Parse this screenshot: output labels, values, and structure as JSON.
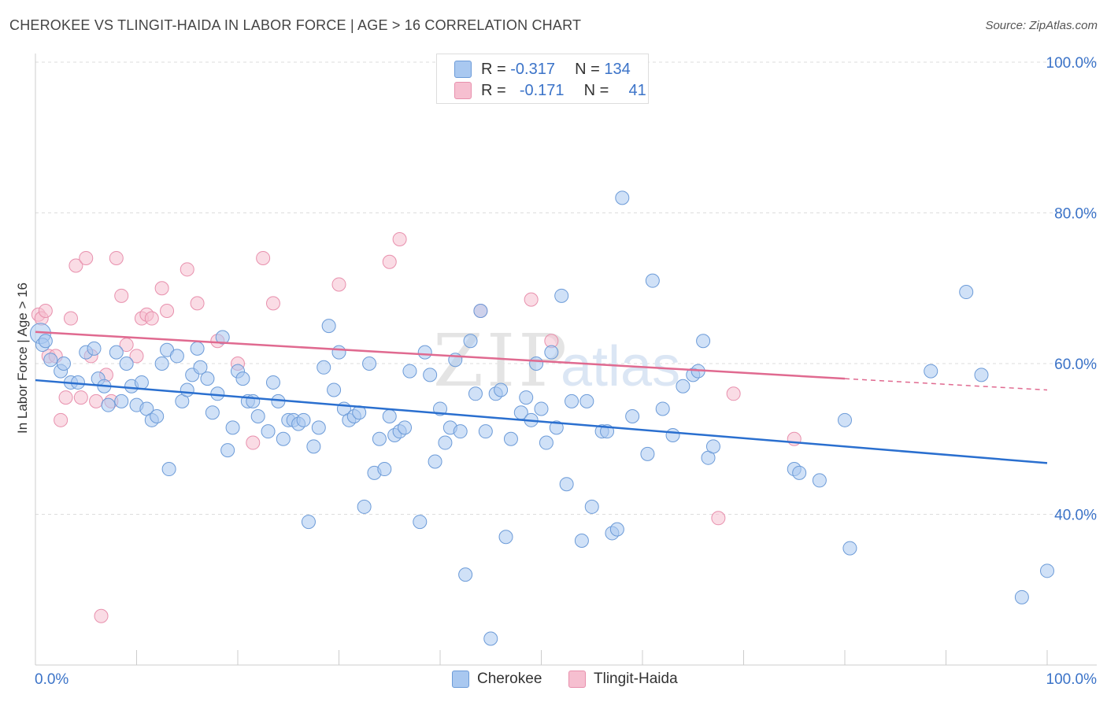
{
  "title": "CHEROKEE VS TLINGIT-HAIDA IN LABOR FORCE | AGE > 16 CORRELATION CHART",
  "source": "Source: ZipAtlas.com",
  "watermark": {
    "zip": "ZIP",
    "atlas": "atlas"
  },
  "legend": {
    "rows": [
      {
        "r_label": "R =",
        "r_value": "-0.317",
        "n_label": "N =",
        "n_value": "134"
      },
      {
        "r_label": "R =",
        "r_value": "-0.171",
        "n_label": "N =",
        "n_value": "41"
      }
    ]
  },
  "colors": {
    "cherokee_fill": "#a9c8f0",
    "cherokee_stroke": "#6c9bd8",
    "cherokee_line": "#2a6fcf",
    "tlingit_fill": "#f6bfd0",
    "tlingit_stroke": "#e890ad",
    "tlingit_line": "#e06a90",
    "axis_label": "#3b73c8",
    "grid": "#dddddd"
  },
  "chart_data": {
    "type": "scatter",
    "title": "CHEROKEE VS TLINGIT-HAIDA IN LABOR FORCE | AGE > 16 CORRELATION CHART",
    "xlabel": "",
    "ylabel": "In Labor Force | Age > 16",
    "xlim": [
      0,
      100
    ],
    "ylim": [
      20,
      100
    ],
    "x_tick_labels": [
      "0.0%",
      "100.0%"
    ],
    "y_ticks": [
      40,
      60,
      80,
      100
    ],
    "y_tick_labels": [
      "40.0%",
      "60.0%",
      "80.0%",
      "100.0%"
    ],
    "grid": true,
    "legend_position": "top-center",
    "series": [
      {
        "name": "Cherokee",
        "r": -0.317,
        "n": 134,
        "trend": {
          "x": [
            0,
            100
          ],
          "y": [
            57.8,
            46.8
          ]
        },
        "points": [
          [
            0.5,
            64
          ],
          [
            0.7,
            62.5
          ],
          [
            1.5,
            60.5
          ],
          [
            2.5,
            59
          ],
          [
            2.8,
            60
          ],
          [
            3.5,
            57.5
          ],
          [
            4.2,
            57.5
          ],
          [
            5.0,
            61.5
          ],
          [
            5.8,
            62
          ],
          [
            6.2,
            58
          ],
          [
            6.8,
            57
          ],
          [
            7.2,
            54.5
          ],
          [
            8.0,
            61.5
          ],
          [
            8.5,
            55
          ],
          [
            9.0,
            60
          ],
          [
            9.5,
            57
          ],
          [
            10.0,
            54.5
          ],
          [
            10.5,
            57.5
          ],
          [
            11.0,
            54
          ],
          [
            11.5,
            52.5
          ],
          [
            12.0,
            53
          ],
          [
            12.5,
            60
          ],
          [
            13.0,
            61.8
          ],
          [
            13.2,
            46
          ],
          [
            14.0,
            61
          ],
          [
            14.5,
            55
          ],
          [
            15.0,
            56.5
          ],
          [
            15.5,
            58.5
          ],
          [
            16.0,
            62
          ],
          [
            16.3,
            59.5
          ],
          [
            17.0,
            58
          ],
          [
            17.5,
            53.5
          ],
          [
            18.0,
            56
          ],
          [
            18.5,
            63.5
          ],
          [
            19.0,
            48.5
          ],
          [
            19.5,
            51.5
          ],
          [
            20.0,
            59
          ],
          [
            20.5,
            58
          ],
          [
            21.0,
            55
          ],
          [
            21.5,
            55
          ],
          [
            22.0,
            53
          ],
          [
            23.0,
            51
          ],
          [
            23.5,
            57.5
          ],
          [
            24.0,
            55
          ],
          [
            24.5,
            50
          ],
          [
            25.0,
            52.5
          ],
          [
            25.5,
            52.5
          ],
          [
            26.0,
            52
          ],
          [
            26.5,
            52.5
          ],
          [
            27.0,
            39
          ],
          [
            27.5,
            49
          ],
          [
            28.0,
            51.5
          ],
          [
            28.5,
            59.5
          ],
          [
            29.0,
            65
          ],
          [
            29.5,
            56.5
          ],
          [
            30.0,
            61.5
          ],
          [
            30.5,
            54
          ],
          [
            31.0,
            52.5
          ],
          [
            31.5,
            53
          ],
          [
            32.0,
            53.5
          ],
          [
            32.5,
            41
          ],
          [
            33.0,
            60
          ],
          [
            33.5,
            45.5
          ],
          [
            34.0,
            50
          ],
          [
            34.5,
            46
          ],
          [
            35.0,
            53
          ],
          [
            35.5,
            50.5
          ],
          [
            36.0,
            51
          ],
          [
            36.5,
            51.5
          ],
          [
            37.0,
            59
          ],
          [
            38.0,
            39
          ],
          [
            38.5,
            61.5
          ],
          [
            39.0,
            58.5
          ],
          [
            39.5,
            47
          ],
          [
            40.0,
            54
          ],
          [
            40.5,
            49.5
          ],
          [
            41.0,
            51.5
          ],
          [
            41.5,
            60.5
          ],
          [
            42.0,
            51
          ],
          [
            42.5,
            32
          ],
          [
            43.0,
            63
          ],
          [
            43.5,
            56
          ],
          [
            44.0,
            67
          ],
          [
            44.5,
            51
          ],
          [
            45.0,
            23.5
          ],
          [
            45.5,
            56
          ],
          [
            46.0,
            56.5
          ],
          [
            46.5,
            37
          ],
          [
            47.0,
            50
          ],
          [
            48.0,
            53.5
          ],
          [
            48.5,
            55.5
          ],
          [
            49.0,
            52.5
          ],
          [
            49.5,
            60
          ],
          [
            50.0,
            54
          ],
          [
            50.5,
            49.5
          ],
          [
            51.0,
            61.5
          ],
          [
            51.5,
            51.5
          ],
          [
            52.0,
            69
          ],
          [
            52.5,
            44
          ],
          [
            53.0,
            55
          ],
          [
            54.0,
            36.5
          ],
          [
            54.5,
            55
          ],
          [
            55.0,
            41
          ],
          [
            56.0,
            51
          ],
          [
            56.5,
            51
          ],
          [
            57.0,
            37.5
          ],
          [
            57.5,
            38
          ],
          [
            58.0,
            82
          ],
          [
            59.0,
            53
          ],
          [
            60.5,
            48
          ],
          [
            61.0,
            71
          ],
          [
            62.0,
            54
          ],
          [
            63.0,
            50.5
          ],
          [
            64.0,
            57
          ],
          [
            65.0,
            58.5
          ],
          [
            65.5,
            59
          ],
          [
            66.0,
            63
          ],
          [
            66.5,
            47.5
          ],
          [
            67.0,
            49
          ],
          [
            75.0,
            46
          ],
          [
            75.5,
            45.5
          ],
          [
            77.5,
            44.5
          ],
          [
            80.0,
            52.5
          ],
          [
            80.5,
            35.5
          ],
          [
            88.5,
            59
          ],
          [
            92.0,
            69.5
          ],
          [
            93.5,
            58.5
          ],
          [
            97.5,
            29
          ],
          [
            100.0,
            32.5
          ],
          [
            1.0,
            63
          ]
        ]
      },
      {
        "name": "Tlingit-Haida",
        "r": -0.171,
        "n": 41,
        "trend": {
          "x": [
            0,
            80
          ],
          "y": [
            64.2,
            58.0
          ]
        },
        "dashed_extension": {
          "x": [
            80,
            100
          ],
          "y": [
            58.0,
            56.5
          ]
        },
        "points": [
          [
            0.3,
            66.5
          ],
          [
            0.6,
            66
          ],
          [
            1.0,
            67
          ],
          [
            1.3,
            61
          ],
          [
            2.0,
            61
          ],
          [
            2.5,
            52.5
          ],
          [
            3.0,
            55.5
          ],
          [
            3.5,
            66
          ],
          [
            4.0,
            73
          ],
          [
            4.5,
            55.5
          ],
          [
            5.0,
            74
          ],
          [
            5.5,
            61
          ],
          [
            6.0,
            55
          ],
          [
            6.5,
            26.5
          ],
          [
            7.0,
            58.5
          ],
          [
            7.5,
            55
          ],
          [
            8.0,
            74
          ],
          [
            8.5,
            69
          ],
          [
            9.0,
            62.5
          ],
          [
            10.0,
            61
          ],
          [
            10.5,
            66
          ],
          [
            11.0,
            66.5
          ],
          [
            11.5,
            66
          ],
          [
            12.5,
            70
          ],
          [
            13.0,
            67
          ],
          [
            15.0,
            72.5
          ],
          [
            16.0,
            68
          ],
          [
            18.0,
            63
          ],
          [
            20.0,
            60
          ],
          [
            21.5,
            49.5
          ],
          [
            22.5,
            74
          ],
          [
            23.5,
            68
          ],
          [
            30.0,
            70.5
          ],
          [
            35.0,
            73.5
          ],
          [
            36.0,
            76.5
          ],
          [
            44.0,
            67
          ],
          [
            49.0,
            68.5
          ],
          [
            51.0,
            63
          ],
          [
            67.5,
            39.5
          ],
          [
            69.0,
            56
          ],
          [
            75.0,
            50
          ]
        ]
      }
    ]
  },
  "bottom_legend": [
    {
      "label": "Cherokee"
    },
    {
      "label": "Tlingit-Haida"
    }
  ]
}
